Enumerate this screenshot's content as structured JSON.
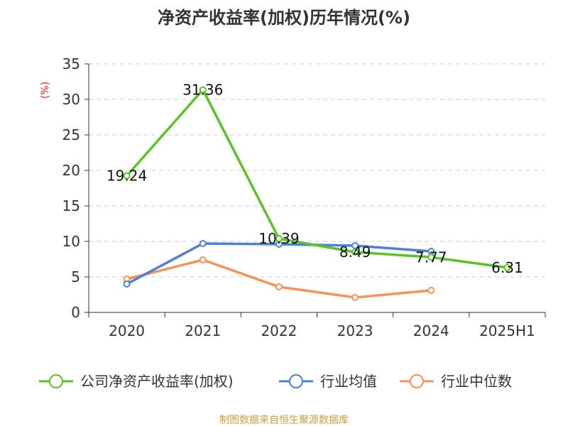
{
  "chart_data": {
    "type": "line",
    "title": "净资产收益率(加权)历年情况(%)",
    "ylabel": "(%)",
    "categories": [
      "2020",
      "2021",
      "2022",
      "2023",
      "2024",
      "2025H1"
    ],
    "ylim": [
      0,
      35
    ],
    "yticks": [
      0,
      5,
      10,
      15,
      20,
      25,
      30,
      35
    ],
    "grid": true,
    "legend_position": "bottom",
    "series": [
      {
        "name": "公司净资产收益率(加权)",
        "color": "#5cc22a",
        "values": [
          19.24,
          31.36,
          10.39,
          8.49,
          7.77,
          6.31
        ],
        "labels": [
          "19.24",
          "31.36",
          "10.39",
          "8.49",
          "7.77",
          "6.31"
        ]
      },
      {
        "name": "行业均值",
        "color": "#4f7fd6",
        "values": [
          4.0,
          9.7,
          9.6,
          9.4,
          8.6,
          null
        ]
      },
      {
        "name": "行业中位数",
        "color": "#f4935c",
        "values": [
          4.7,
          7.4,
          3.6,
          2.1,
          3.1,
          null
        ]
      }
    ]
  },
  "source": "制图数据来自恒生聚源数据库"
}
